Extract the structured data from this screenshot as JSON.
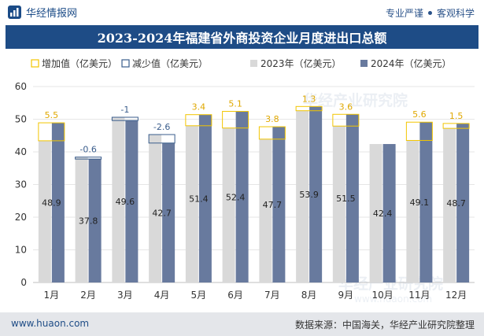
{
  "header": {
    "brand": "华经情报网",
    "tag1": "专业严谨",
    "tag2": "客观科学"
  },
  "title": "2023-2024年福建省外商投资企业月度进出口总额",
  "footer": {
    "website": "www.huaon.com",
    "source": "数据来源：中国海关，华经产业研究院整理"
  },
  "watermark": {
    "text1": "华经产业研究院",
    "text2": "www.huaon.com"
  },
  "colors": {
    "title_bg": "#1e4c86",
    "bar_2023": "#d9d9d9",
    "bar_2024": "#687a9e",
    "increase": "#f2c500",
    "decrease": "#3a5d8c",
    "label_increase": "#e0a800",
    "label_decrease": "#3a5d8c"
  },
  "chart_data": {
    "type": "bar",
    "title": "2023-2024年福建省外商投资企业月度进出口总额",
    "categories": [
      "1月",
      "2月",
      "3月",
      "4月",
      "5月",
      "6月",
      "7月",
      "8月",
      "9月",
      "10月",
      "11月",
      "12月"
    ],
    "series": [
      {
        "name": "2023年（亿美元）",
        "values": [
          43.4,
          38.4,
          50.6,
          45.3,
          48.0,
          47.3,
          43.9,
          52.6,
          47.9,
          42.4,
          43.5,
          47.2
        ]
      },
      {
        "name": "2024年（亿美元）",
        "values": [
          48.9,
          37.8,
          49.6,
          42.7,
          51.4,
          52.4,
          47.7,
          53.9,
          51.5,
          42.4,
          49.1,
          48.7
        ]
      }
    ],
    "change": [
      5.5,
      -0.6,
      -1,
      -2.6,
      3.4,
      5.1,
      3.8,
      1.3,
      3.6,
      null,
      5.6,
      1.5
    ],
    "change_labels": [
      "5.5",
      "-0.6",
      "-1",
      "-2.6",
      "3.4",
      "5.1",
      "3.8",
      "1.3",
      "3.6",
      "",
      "5.6",
      "1.5"
    ],
    "value_labels": [
      "48.9",
      "37.8",
      "49.6",
      "42.7",
      "51.4",
      "52.4",
      "47.7",
      "53.9",
      "51.5",
      "42.4",
      "49.1",
      "48.7"
    ],
    "legend": [
      "增加值（亿美元）",
      "减少值（亿美元）",
      "2023年（亿美元）",
      "2024年（亿美元）"
    ],
    "legend_position": "top",
    "yticks": [
      "0",
      "10",
      "20",
      "30",
      "40",
      "50",
      "60"
    ],
    "ylim": [
      0,
      60
    ],
    "xlabel": "",
    "ylabel": "",
    "grid": true
  }
}
